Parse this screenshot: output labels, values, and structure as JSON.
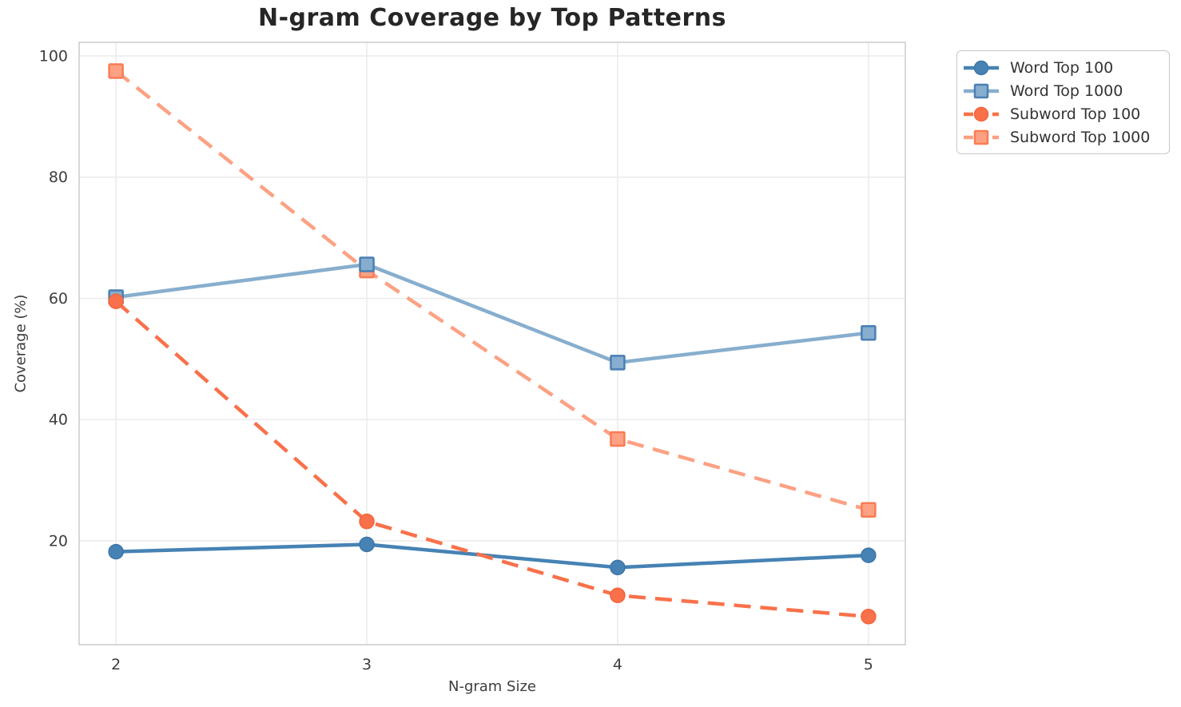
{
  "chart_data": {
    "type": "line",
    "title": "N-gram Coverage by Top Patterns",
    "xlabel": "N-gram Size",
    "ylabel": "Coverage (%)",
    "x": [
      2,
      3,
      4,
      5
    ],
    "xticks": [
      "2",
      "3",
      "4",
      "5"
    ],
    "yticks": [
      20,
      40,
      60,
      80,
      100
    ],
    "xlim": [
      1.853,
      5.147
    ],
    "ylim": [
      2.86,
      102.24
    ],
    "grid": true,
    "legend_position": "outside-top-right",
    "series": [
      {
        "name": "Word Top 100",
        "color": "#4682B4",
        "marker": "circle",
        "marker_edge": "#3D76A8",
        "dash": "solid",
        "values": [
          18.2,
          19.4,
          15.6,
          17.6
        ]
      },
      {
        "name": "Word Top 1000",
        "color": "#87AECE",
        "marker": "square",
        "marker_edge": "#4A7FB4",
        "dash": "solid",
        "values": [
          60.2,
          65.6,
          49.4,
          54.3
        ]
      },
      {
        "name": "Subword Top 100",
        "color": "#F9714A",
        "marker": "circle",
        "marker_edge": "#F4643B",
        "dash": "dashed",
        "values": [
          59.5,
          23.2,
          11.0,
          7.5
        ]
      },
      {
        "name": "Subword Top 1000",
        "color": "#FCA183",
        "marker": "square",
        "marker_edge": "#F97C54",
        "dash": "dashed",
        "values": [
          97.5,
          64.6,
          36.8,
          25.1
        ]
      }
    ],
    "draw_order": [
      0,
      3,
      1,
      2
    ]
  },
  "colors": {
    "background": "#ffffff",
    "gridline": "#ebebeb",
    "spine": "#cbcbcb",
    "tick_label": "#3d3d3d",
    "title": "#262626",
    "legend_text": "#333333"
  }
}
